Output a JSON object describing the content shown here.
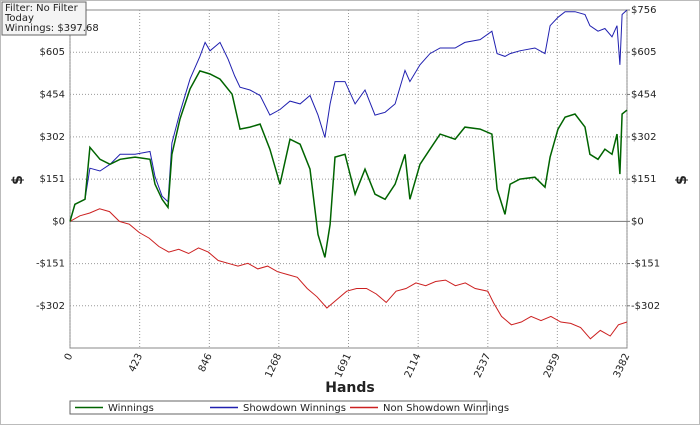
{
  "chart_data": {
    "type": "line",
    "annotations": [
      "Filter: No Filter",
      "Today",
      "Winnings: $397.68"
    ],
    "xlabel": "Hands",
    "ylabel": "$",
    "y2label": "$",
    "xlim": [
      0,
      3382
    ],
    "xticks": [
      0,
      423,
      846,
      1268,
      1691,
      2114,
      2537,
      2959,
      3382
    ],
    "ylim": [
      -453,
      756
    ],
    "yticks": [
      {
        "value": -302,
        "label": "-$302"
      },
      {
        "value": -151,
        "label": "-$151"
      },
      {
        "value": 0,
        "label": "$0"
      },
      {
        "value": 151,
        "label": "$151"
      },
      {
        "value": 302,
        "label": "$302"
      },
      {
        "value": 454,
        "label": "$454"
      },
      {
        "value": 605,
        "label": "$605"
      }
    ],
    "y2lim": [
      -453,
      756
    ],
    "y2ticks": [
      {
        "value": -302,
        "label": "-$302"
      },
      {
        "value": -151,
        "label": "-$151"
      },
      {
        "value": 0,
        "label": "$0"
      },
      {
        "value": 151,
        "label": "$151"
      },
      {
        "value": 302,
        "label": "$302"
      },
      {
        "value": 454,
        "label": "$454"
      },
      {
        "value": 605,
        "label": "$605"
      },
      {
        "value": 756,
        "label": "$756"
      }
    ],
    "grid": true,
    "legend": "bottom",
    "series": [
      {
        "name": "Winnings",
        "color": "#006400",
        "x": [
          0,
          30,
          91,
          121,
          182,
          243,
          304,
          395,
          486,
          516,
          559,
          595,
          619,
          668,
          729,
          789,
          850,
          911,
          984,
          1032,
          1093,
          1154,
          1214,
          1275,
          1336,
          1397,
          1457,
          1506,
          1548,
          1579,
          1609,
          1670,
          1731,
          1791,
          1852,
          1913,
          1974,
          2034,
          2064,
          2125,
          2186,
          2247,
          2338,
          2398,
          2490,
          2562,
          2593,
          2641,
          2672,
          2732,
          2823,
          2884,
          2915,
          2963,
          3006,
          3066,
          3127,
          3157,
          3206,
          3248,
          3291,
          3321,
          3339,
          3352,
          3382
        ],
        "values": [
          0,
          61,
          79,
          265,
          222,
          204,
          222,
          230,
          222,
          133,
          79,
          50,
          240,
          366,
          474,
          538,
          527,
          509,
          455,
          330,
          337,
          348,
          258,
          133,
          294,
          276,
          187,
          -47,
          -129,
          -11,
          230,
          240,
          97,
          187,
          97,
          79,
          133,
          240,
          79,
          204,
          258,
          312,
          294,
          337,
          330,
          312,
          115,
          25,
          133,
          151,
          158,
          122,
          230,
          330,
          373,
          384,
          337,
          240,
          222,
          258,
          240,
          312,
          169,
          384,
          398
        ]
      },
      {
        "name": "Showdown Winnings",
        "color": "#2020b0",
        "x": [
          0,
          30,
          91,
          121,
          182,
          243,
          304,
          395,
          486,
          516,
          559,
          595,
          619,
          668,
          729,
          789,
          820,
          850,
          911,
          960,
          1000,
          1032,
          1093,
          1154,
          1214,
          1275,
          1336,
          1397,
          1457,
          1506,
          1548,
          1579,
          1609,
          1670,
          1731,
          1791,
          1852,
          1913,
          1974,
          2034,
          2064,
          2125,
          2186,
          2247,
          2338,
          2398,
          2490,
          2562,
          2593,
          2641,
          2672,
          2732,
          2823,
          2884,
          2915,
          2963,
          3006,
          3066,
          3127,
          3157,
          3206,
          3248,
          3291,
          3321,
          3339,
          3352,
          3382
        ],
        "values": [
          0,
          61,
          79,
          190,
          180,
          204,
          240,
          240,
          250,
          160,
          90,
          70,
          280,
          390,
          510,
          590,
          640,
          610,
          640,
          580,
          520,
          480,
          470,
          450,
          380,
          400,
          430,
          420,
          450,
          380,
          300,
          420,
          500,
          500,
          420,
          470,
          380,
          390,
          420,
          540,
          500,
          560,
          600,
          620,
          620,
          640,
          650,
          680,
          600,
          590,
          600,
          610,
          620,
          600,
          700,
          730,
          750,
          750,
          740,
          700,
          680,
          690,
          660,
          700,
          560,
          740,
          756
        ]
      },
      {
        "name": "Non Showdown Winnings",
        "color": "#cc2020",
        "x": [
          0,
          60,
          120,
          180,
          240,
          300,
          360,
          420,
          480,
          540,
          600,
          660,
          720,
          780,
          840,
          900,
          960,
          1020,
          1080,
          1140,
          1200,
          1260,
          1320,
          1380,
          1440,
          1500,
          1560,
          1620,
          1680,
          1740,
          1800,
          1860,
          1920,
          1980,
          2040,
          2100,
          2160,
          2220,
          2280,
          2340,
          2400,
          2460,
          2537,
          2570,
          2620,
          2680,
          2740,
          2800,
          2860,
          2920,
          2980,
          3040,
          3100,
          3160,
          3220,
          3280,
          3330,
          3382
        ],
        "values": [
          0,
          20,
          30,
          45,
          35,
          0,
          -10,
          -40,
          -60,
          -90,
          -110,
          -100,
          -115,
          -95,
          -110,
          -140,
          -150,
          -160,
          -150,
          -170,
          -160,
          -180,
          -190,
          -200,
          -240,
          -270,
          -310,
          -280,
          -250,
          -240,
          -240,
          -260,
          -290,
          -250,
          -240,
          -220,
          -230,
          -215,
          -210,
          -230,
          -220,
          -240,
          -250,
          -290,
          -340,
          -370,
          -360,
          -340,
          -355,
          -340,
          -360,
          -365,
          -380,
          -420,
          -390,
          -410,
          -370,
          -360
        ]
      }
    ]
  }
}
